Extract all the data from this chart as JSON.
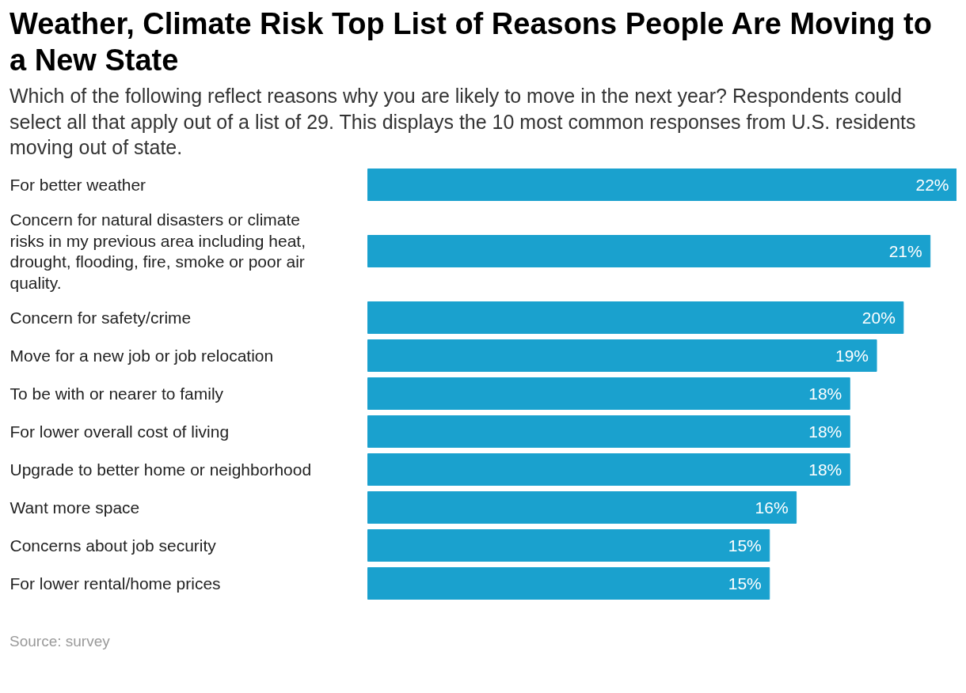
{
  "chart_data": {
    "type": "bar",
    "orientation": "horizontal",
    "title": "Weather, Climate Risk Top List of Reasons People Are Moving to a New State",
    "subtitle": "Which of the following reflect reasons why you are likely to move in the next year? Respondents could select all that apply out of a list of 29. This displays the 10 most common responses from U.S. residents moving out of state.",
    "categories": [
      "For better weather",
      "Concern for natural disasters or climate risks in my previous area including heat, drought, flooding, fire, smoke or poor air quality.",
      "Concern for safety/crime",
      "Move for a new job or job relocation",
      "To be with or nearer to family",
      "For lower overall cost of living",
      "Upgrade to better home or neighborhood",
      "Want more space",
      "Concerns about job security",
      "For lower rental/home prices"
    ],
    "values": [
      22,
      21,
      20,
      19,
      18,
      18,
      18,
      16,
      15,
      15
    ],
    "value_labels": [
      "22%",
      "21%",
      "20%",
      "19%",
      "18%",
      "18%",
      "18%",
      "16%",
      "15%",
      "15%"
    ],
    "color": "#1aa1ce",
    "annotations": [
      "Source: survey"
    ]
  }
}
